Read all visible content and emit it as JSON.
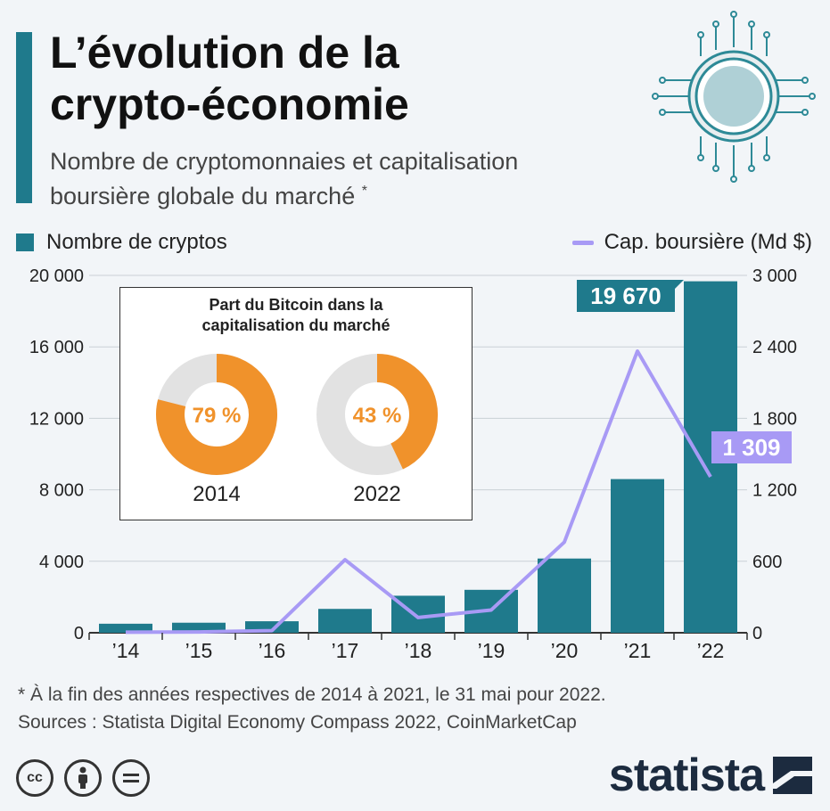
{
  "header": {
    "title_line1": "L’évolution de la",
    "title_line2": "crypto-économie",
    "subtitle_line1": "Nombre de cryptomonnaies et capitalisation",
    "subtitle_line2": "boursière globale du marché",
    "subtitle_mark": "*"
  },
  "legend": {
    "bars_label": "Nombre de cryptos",
    "line_label": "Cap. boursière (Md $)"
  },
  "colors": {
    "bars": "#1f7a8c",
    "line": "#a89af5",
    "donut_bitcoin": "#f0922b",
    "donut_rest": "#e2e2e2"
  },
  "chart_data": {
    "type": "bar",
    "categories": [
      "’14",
      "’15",
      "’16",
      "’17",
      "’18",
      "’19",
      "’20",
      "’21",
      "’22"
    ],
    "series": [
      {
        "name": "Nombre de cryptos",
        "type": "bar",
        "axis": "left",
        "values": [
          506,
          562,
          644,
          1335,
          2072,
          2403,
          4154,
          8600,
          19670
        ]
      },
      {
        "name": "Cap. boursière (Md $)",
        "type": "line",
        "axis": "right",
        "values": [
          5,
          7,
          18,
          613,
          128,
          191,
          761,
          2364,
          1309
        ]
      }
    ],
    "y_left": {
      "ylim": [
        0,
        20000
      ],
      "ticks": [
        "0",
        "4 000",
        "8 000",
        "12 000",
        "16 000",
        "20 000"
      ]
    },
    "y_right": {
      "ylim": [
        0,
        3000
      ],
      "ticks": [
        "0",
        "600",
        "1 200",
        "1 800",
        "2 400",
        "3 000"
      ]
    },
    "grid": true,
    "legend_position": "top",
    "annotations": {
      "bar_last": "19 670",
      "line_last": "1 309"
    },
    "inset": {
      "type": "pie",
      "title_line1": "Part du Bitcoin dans la",
      "title_line2": "capitalisation du marché",
      "items": [
        {
          "year": "2014",
          "value": 79,
          "label": "79 %"
        },
        {
          "year": "2022",
          "value": 43,
          "label": "43 %"
        }
      ]
    }
  },
  "footnote": {
    "note": "* À la fin des années respectives de 2014 à 2021, le 31 mai pour 2022.",
    "sources": "Sources : Statista Digital Economy Compass 2022, CoinMarketCap"
  },
  "branding": {
    "logo_text": "statista",
    "license_icons": [
      "cc-icon",
      "attribution-icon",
      "no-derivatives-icon"
    ]
  }
}
